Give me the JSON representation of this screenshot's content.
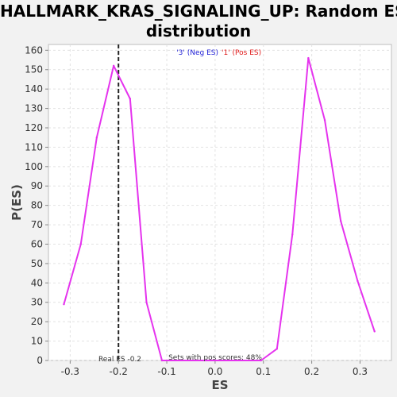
{
  "colors": {
    "series": "#e533ee",
    "neg_legend": "#1f1fd6",
    "pos_legend": "#e01b1b",
    "real_es_line": "#222222"
  },
  "chart_data": {
    "type": "line",
    "title_lines": [
      "HALLMARK_KRAS_SIGNALING_UP: Random ES",
      "distribution"
    ],
    "xlabel": "ES",
    "ylabel": "P(ES)",
    "xlim": [
      -0.345,
      0.365
    ],
    "ylim": [
      0,
      163
    ],
    "xticks": [
      -0.3,
      -0.2,
      -0.1,
      0.0,
      0.1,
      0.2,
      0.3
    ],
    "xtick_labels": [
      "-0.3",
      "-0.2",
      "-0.1",
      "0.0",
      "0.1",
      "0.2",
      "0.3"
    ],
    "yticks": [
      0,
      10,
      20,
      30,
      40,
      50,
      60,
      70,
      80,
      90,
      100,
      110,
      120,
      130,
      140,
      150,
      160
    ],
    "grid": true,
    "legend": {
      "placement": "top-center",
      "neg_label": "'3' (Neg ES)",
      "pos_label": "'1' (Pos ES)"
    },
    "series": [
      {
        "x": [
          -0.313,
          -0.278,
          -0.245,
          -0.21,
          -0.176,
          -0.142,
          -0.11,
          0.095,
          0.128,
          0.16,
          0.193,
          0.227,
          0.26,
          0.295,
          0.33
        ],
        "y": [
          29,
          60,
          115,
          152,
          135,
          30,
          0,
          0,
          6,
          65,
          156,
          124,
          72,
          41,
          15
        ]
      }
    ],
    "real_es": {
      "x": -0.2,
      "label": "Real ES -0.2"
    },
    "annotation": "Sets with pos scores: 48%"
  }
}
